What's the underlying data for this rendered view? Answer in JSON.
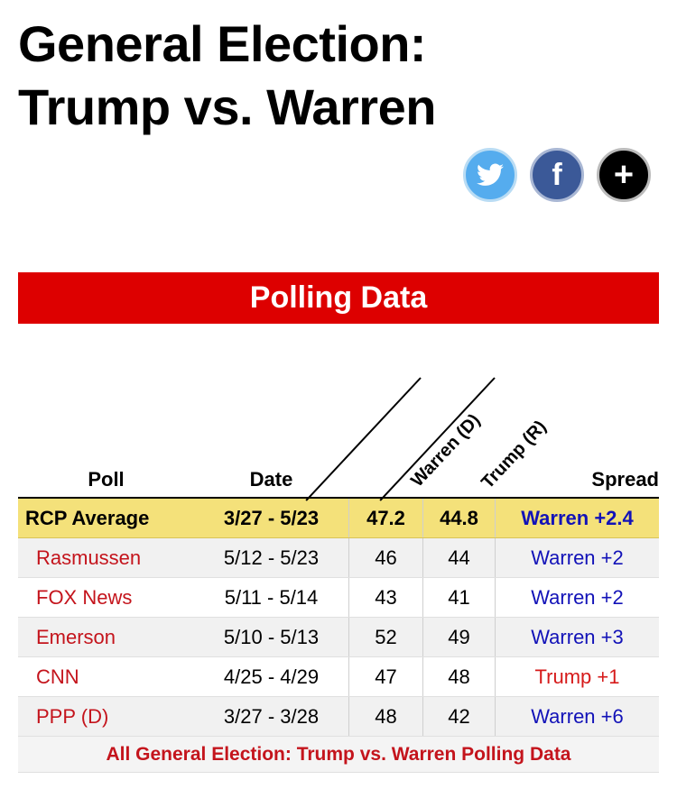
{
  "header": {
    "title_line1": "General Election:",
    "title_line2": "Trump vs. Warren"
  },
  "share": [
    {
      "name": "twitter",
      "icon": "twitter-bird-icon",
      "color": "#55acee"
    },
    {
      "name": "facebook",
      "icon": "facebook-f-icon",
      "glyph": "f",
      "color": "#3b5998"
    },
    {
      "name": "more",
      "icon": "plus-icon",
      "glyph": "+",
      "color": "#000000"
    }
  ],
  "banner": {
    "title": "Polling Data",
    "color": "#dd0000"
  },
  "table": {
    "columns": {
      "poll": "Poll",
      "date": "Date",
      "warren": "Warren (D)",
      "trump": "Trump (R)",
      "spread": "Spread"
    },
    "average": {
      "poll": "RCP Average",
      "date": "3/27 - 5/23",
      "warren": "47.2",
      "trump": "44.8",
      "spread": "Warren +2.4"
    },
    "rows": [
      {
        "poll": "Rasmussen",
        "date": "5/12 - 5/23",
        "warren": "46",
        "trump": "44",
        "spread": "Warren +2",
        "leader": "warren"
      },
      {
        "poll": "FOX News",
        "date": "5/11 - 5/14",
        "warren": "43",
        "trump": "41",
        "spread": "Warren +2",
        "leader": "warren"
      },
      {
        "poll": "Emerson",
        "date": "5/10 - 5/13",
        "warren": "52",
        "trump": "49",
        "spread": "Warren +3",
        "leader": "warren"
      },
      {
        "poll": "CNN",
        "date": "4/25 - 4/29",
        "warren": "47",
        "trump": "48",
        "spread": "Trump +1",
        "leader": "trump"
      },
      {
        "poll": "PPP (D)",
        "date": "3/27 - 3/28",
        "warren": "48",
        "trump": "42",
        "spread": "Warren +6",
        "leader": "warren"
      }
    ],
    "footer_link": "All General Election: Trump vs. Warren Polling Data"
  },
  "colors": {
    "banner_red": "#dd0000",
    "average_bg": "#f4e17a",
    "pollster_red": "#c4141c",
    "warren_blue": "#1212b8",
    "trump_red": "#d61a1a"
  }
}
